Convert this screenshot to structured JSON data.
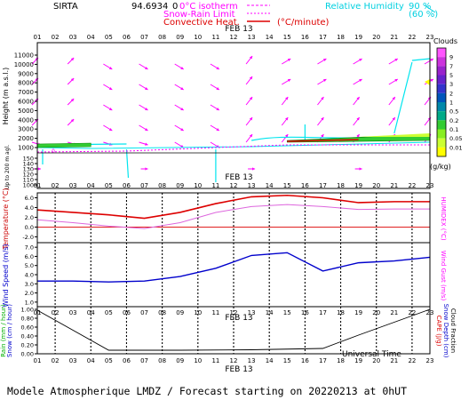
{
  "header": {
    "site": "SIRTA",
    "coords": "94.6934",
    "coord_suffix": "0",
    "legend_0isotherm": "0°C isotherm",
    "legend_snowrain": "Snow-Rain Limit",
    "legend_convective": "Convective Heat.",
    "legend_convective_unit": "(°C/minute)",
    "legend_rh": "Relative Humidity",
    "rh_90": "90 %",
    "rh_60": "(60 %)"
  },
  "hours": [
    "01",
    "02",
    "03",
    "04",
    "05",
    "06",
    "07",
    "08",
    "09",
    "10",
    "11",
    "12",
    "13",
    "14",
    "15",
    "16",
    "17",
    "18",
    "19",
    "20",
    "21",
    "22",
    "23"
  ],
  "date_label": "FEB 13",
  "footer": {
    "universal_time": "Universal Time",
    "forecast": "Modele Atmospherique LMDZ / Forecast starting on 20220213 at 0hUT"
  },
  "colors": {
    "magenta": "#ff00ff",
    "cyan": "#00e5ee",
    "red": "#dd0000",
    "blue": "#0000cc",
    "green": "#00b000",
    "humidex": "#dd66dd"
  },
  "chart_data": [
    {
      "type": "heatmap",
      "panel": "altitude",
      "ylabel": "Height (m a.s.l.)",
      "ylabel_low": "Up to 200 m agl.",
      "yticks_upper": [
        1000,
        2000,
        3000,
        4000,
        5000,
        6000,
        7000,
        8000,
        9000,
        10000,
        11000
      ],
      "yticks_lower": [
        100,
        110,
        120,
        130,
        140,
        150
      ],
      "colorbar": {
        "title": "Clouds",
        "unit": "(g/kg)",
        "levels": [
          "9",
          "7",
          "5",
          "3",
          "2",
          "1",
          "0.5",
          "0.2",
          "0.1",
          "0.05",
          "0.01"
        ],
        "colors": [
          "#ffff00",
          "#ccff33",
          "#88ee22",
          "#33cc33",
          "#00aa88",
          "#0088aa",
          "#0055bb",
          "#3333cc",
          "#6622cc",
          "#9922cc",
          "#cc33dd",
          "#ff55ff"
        ]
      },
      "wind_vectors": "magenta arrows, mainly westerly at altitude"
    },
    {
      "type": "line",
      "panel": "temperature",
      "ylabel": "Temperature (°C)",
      "ylabel_right": "HUMIDEX (°C)",
      "yticks": [
        -2.0,
        0.0,
        2.0,
        4.0,
        6.0
      ],
      "ylim": [
        -3.2,
        7.0
      ],
      "x": [
        1,
        3,
        5,
        7,
        9,
        11,
        13,
        15,
        17,
        19,
        21,
        23
      ],
      "series": [
        {
          "name": "Temperature",
          "values": [
            3.5,
            3.0,
            2.5,
            1.8,
            3.0,
            4.8,
            6.2,
            6.5,
            6.0,
            5.0,
            5.2,
            5.2
          ]
        },
        {
          "name": "Humidex",
          "values": [
            1.5,
            0.9,
            0.2,
            -0.3,
            0.9,
            3.0,
            4.2,
            4.6,
            4.2,
            3.6,
            3.7,
            3.7
          ]
        }
      ]
    },
    {
      "type": "line",
      "panel": "wind",
      "ylabel": "Wind Speed (m/s)",
      "ylabel_right": "Wind Gust (m/s)",
      "yticks": [
        1.0,
        2.0,
        3.0,
        4.0,
        5.0,
        6.0,
        7.0
      ],
      "ylim": [
        0.5,
        7.5
      ],
      "x": [
        1,
        3,
        5,
        7,
        9,
        11,
        13,
        15,
        17,
        19,
        21,
        23
      ],
      "series": [
        {
          "name": "Wind Speed",
          "values": [
            3.3,
            3.3,
            3.2,
            3.3,
            3.8,
            4.7,
            6.1,
            6.4,
            4.4,
            5.3,
            5.5,
            5.9
          ]
        }
      ]
    },
    {
      "type": "line",
      "panel": "rain",
      "ylabel_left": [
        "Rain (mm / hour)",
        "Snow (cm / hour)"
      ],
      "ylabel_right": [
        "CAPE (J/g)",
        "Snow Depth (cm)",
        "Cloud Fraction"
      ],
      "yticks": [
        0.0,
        0.2,
        0.4,
        0.6,
        0.8,
        1.0
      ],
      "ylim": [
        0.0,
        1.0
      ],
      "x": [
        1,
        5,
        9,
        13,
        17,
        19,
        23
      ],
      "series": [
        {
          "name": "Cloud Fraction",
          "values": [
            0.98,
            0.08,
            0.08,
            0.09,
            0.12,
            0.42,
            1.0
          ]
        }
      ]
    }
  ]
}
